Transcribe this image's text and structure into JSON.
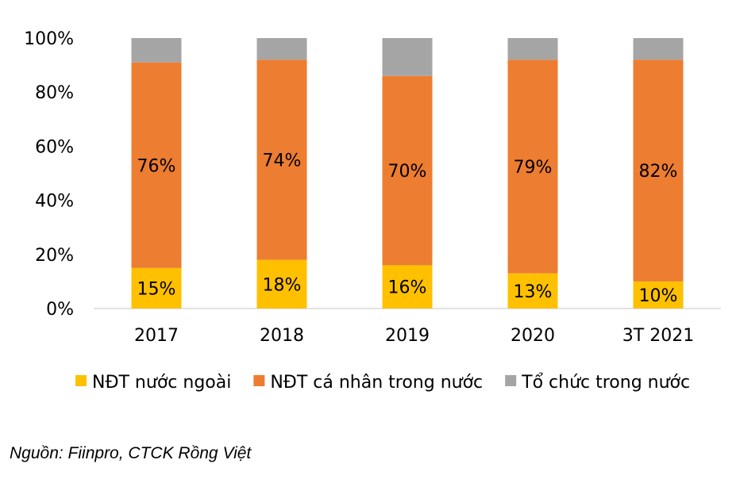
{
  "chart_data": {
    "type": "bar",
    "stacked": true,
    "categories": [
      "2017",
      "2018",
      "2019",
      "2020",
      "3T 2021"
    ],
    "series": [
      {
        "name": "NĐT nước ngoài",
        "values": [
          15,
          18,
          16,
          13,
          10
        ],
        "color": "#FFC000",
        "labels": [
          "15%",
          "18%",
          "16%",
          "13%",
          "10%"
        ]
      },
      {
        "name": "NĐT cá nhân trong nước",
        "values": [
          76,
          74,
          70,
          79,
          82
        ],
        "color": "#ED7D31",
        "labels": [
          "76%",
          "74%",
          "70%",
          "79%",
          "82%"
        ]
      },
      {
        "name": "Tổ chức trong nước",
        "values": [
          9,
          8,
          14,
          8,
          8
        ],
        "color": "#A5A5A5"
      }
    ],
    "ylim": [
      0,
      100
    ],
    "yticks": [
      "0%",
      "20%",
      "40%",
      "60%",
      "80%",
      "100%"
    ],
    "grid": false,
    "legend": "bottom"
  },
  "source": "Nguồn: Fiinpro, CTCK Rồng Việt"
}
